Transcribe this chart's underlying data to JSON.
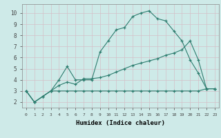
{
  "xlabel": "Humidex (Indice chaleur)",
  "background_color": "#ceeae8",
  "line_color": "#2d7d6f",
  "grid_color": "#d4bfc8",
  "xlim": [
    -0.5,
    23.5
  ],
  "ylim": [
    1.5,
    10.8
  ],
  "xticks": [
    0,
    1,
    2,
    3,
    4,
    5,
    6,
    7,
    8,
    9,
    10,
    11,
    12,
    13,
    14,
    15,
    16,
    17,
    18,
    19,
    20,
    21,
    22,
    23
  ],
  "yticks": [
    2,
    3,
    4,
    5,
    6,
    7,
    8,
    9,
    10
  ],
  "line1_x": [
    0,
    1,
    2,
    3,
    4,
    5,
    6,
    7,
    8,
    9,
    10,
    11,
    12,
    13,
    14,
    15,
    16,
    17,
    18,
    19,
    20,
    21,
    22,
    23
  ],
  "line1_y": [
    3.0,
    2.0,
    2.5,
    3.0,
    4.0,
    5.2,
    4.0,
    4.0,
    4.0,
    6.5,
    7.5,
    8.5,
    8.7,
    9.7,
    10.0,
    10.2,
    9.5,
    9.3,
    8.4,
    7.5,
    5.8,
    4.6,
    3.2,
    3.2
  ],
  "line2_x": [
    0,
    1,
    2,
    3,
    4,
    5,
    6,
    7,
    8,
    9,
    10,
    11,
    12,
    13,
    14,
    15,
    16,
    17,
    18,
    19,
    20,
    21,
    22,
    23
  ],
  "line2_y": [
    3.0,
    2.0,
    2.5,
    3.0,
    3.5,
    3.8,
    3.6,
    4.1,
    4.1,
    4.2,
    4.4,
    4.7,
    5.0,
    5.3,
    5.5,
    5.7,
    5.9,
    6.2,
    6.4,
    6.7,
    7.5,
    5.8,
    3.2,
    3.2
  ],
  "line3_x": [
    0,
    1,
    2,
    3,
    4,
    5,
    6,
    7,
    8,
    9,
    10,
    11,
    12,
    13,
    14,
    15,
    16,
    17,
    18,
    19,
    20,
    21,
    22,
    23
  ],
  "line3_y": [
    3.0,
    2.0,
    2.5,
    3.0,
    3.0,
    3.0,
    3.0,
    3.0,
    3.0,
    3.0,
    3.0,
    3.0,
    3.0,
    3.0,
    3.0,
    3.0,
    3.0,
    3.0,
    3.0,
    3.0,
    3.0,
    3.0,
    3.2,
    3.2
  ]
}
